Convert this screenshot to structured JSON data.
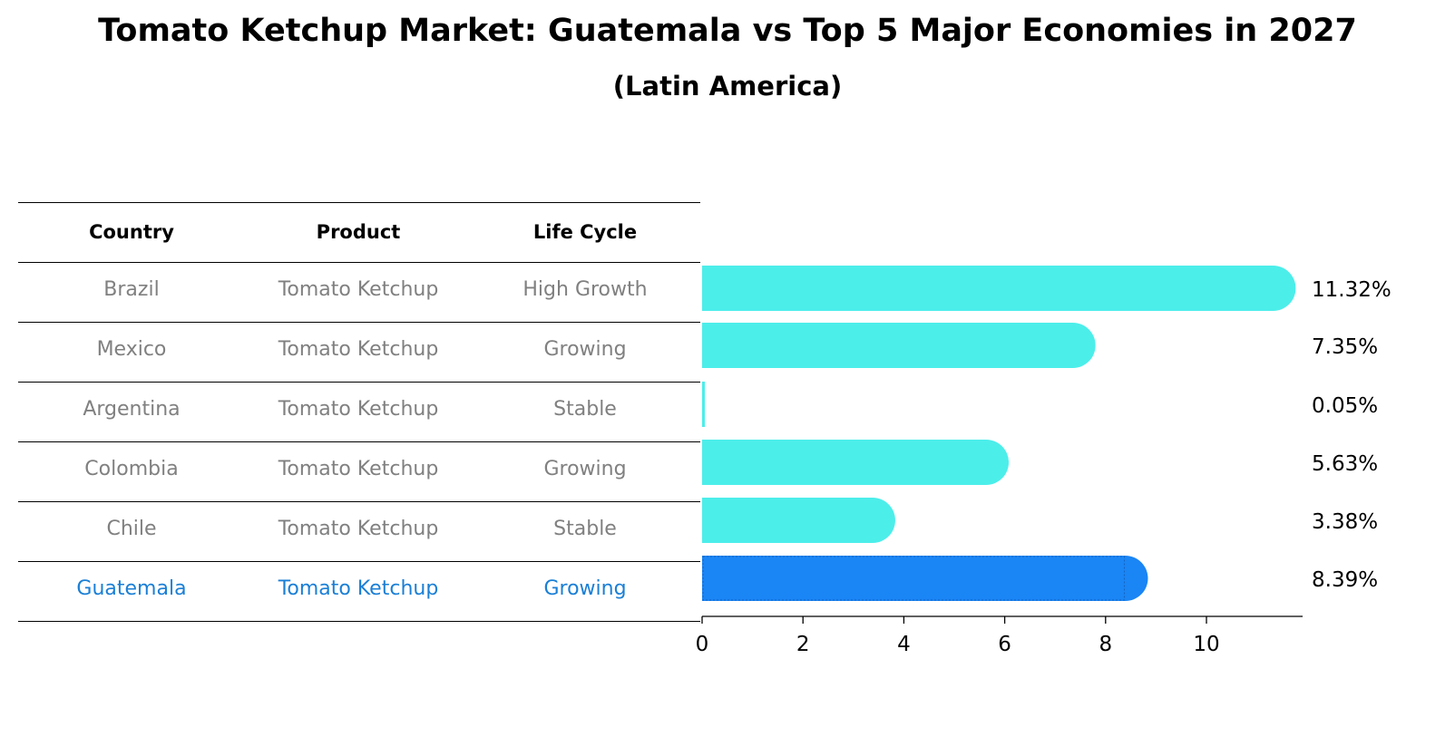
{
  "title": "Tomato Ketchup Market: Guatemala vs Top 5 Major Economies in 2027",
  "subtitle": "(Latin America)",
  "table": {
    "headers": [
      "Country",
      "Product",
      "Life Cycle"
    ],
    "rows": [
      {
        "country": "Brazil",
        "product": "Tomato Ketchup",
        "life_cycle": "High Growth",
        "highlight": false
      },
      {
        "country": "Mexico",
        "product": "Tomato Ketchup",
        "life_cycle": "Growing",
        "highlight": false
      },
      {
        "country": "Argentina",
        "product": "Tomato Ketchup",
        "life_cycle": "Stable",
        "highlight": false
      },
      {
        "country": "Colombia",
        "product": "Tomato Ketchup",
        "life_cycle": "Growing",
        "highlight": false
      },
      {
        "country": "Chile",
        "product": "Tomato Ketchup",
        "life_cycle": "Stable",
        "highlight": false
      },
      {
        "country": "Guatemala",
        "product": "Tomato Ketchup",
        "life_cycle": "Growing",
        "highlight": true
      }
    ],
    "text_color": "#808080",
    "highlight_text_color": "#1a7fd6"
  },
  "chart_data": {
    "type": "bar",
    "orientation": "horizontal",
    "categories": [
      "Brazil",
      "Mexico",
      "Argentina",
      "Colombia",
      "Chile",
      "Guatemala"
    ],
    "values": [
      11.32,
      7.35,
      0.05,
      5.63,
      3.38,
      8.39
    ],
    "value_labels": [
      "11.32%",
      "7.35%",
      "0.05%",
      "5.63%",
      "3.38%",
      "8.39%"
    ],
    "highlight_index": 5,
    "xlim": [
      0,
      11.9
    ],
    "xticks": [
      0,
      2,
      4,
      6,
      8,
      10
    ],
    "grid": false,
    "colors": {
      "default": "#4ceeea",
      "highlight": "#1a85f5"
    }
  }
}
